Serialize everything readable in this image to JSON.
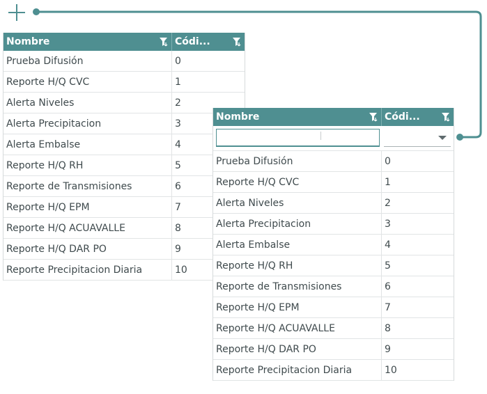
{
  "header": {
    "col_nombre": "Nombre",
    "col_codigo": "Códi..."
  },
  "filter": {
    "text_value": "",
    "select_value": ""
  },
  "rows": [
    {
      "nombre": "Prueba Difusión",
      "codigo": "0"
    },
    {
      "nombre": "Reporte H/Q CVC",
      "codigo": "1"
    },
    {
      "nombre": "Alerta Niveles",
      "codigo": "2"
    },
    {
      "nombre": "Alerta Precipitacion",
      "codigo": "3"
    },
    {
      "nombre": "Alerta Embalse",
      "codigo": "4"
    },
    {
      "nombre": "Reporte H/Q RH",
      "codigo": "5"
    },
    {
      "nombre": "Reporte de Transmisiones",
      "codigo": "6"
    },
    {
      "nombre": "Reporte H/Q EPM",
      "codigo": "7"
    },
    {
      "nombre": "Reporte H/Q ACUAVALLE",
      "codigo": "8"
    },
    {
      "nombre": "Reporte H/Q DAR PO",
      "codigo": "9"
    },
    {
      "nombre": "Reporte Precipitacion Diaria",
      "codigo": "10"
    }
  ],
  "colors": {
    "accent": "#4f8f91",
    "header_text": "#ffffff"
  }
}
